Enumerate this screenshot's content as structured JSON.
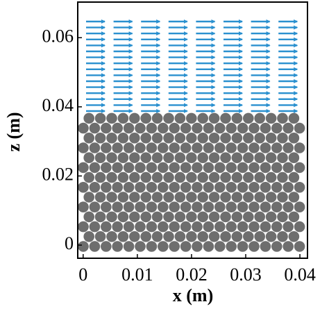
{
  "chart_data": {
    "type": "scatter",
    "xlabel": "x (m)",
    "ylabel": "z (m)",
    "xlim": [
      -0.001,
      0.0414
    ],
    "ylim": [
      -0.0038,
      0.0703
    ],
    "xticks": [
      0,
      0.01,
      0.02,
      0.03,
      0.04
    ],
    "yticks": [
      0,
      0.02,
      0.04,
      0.06
    ]
  }
}
